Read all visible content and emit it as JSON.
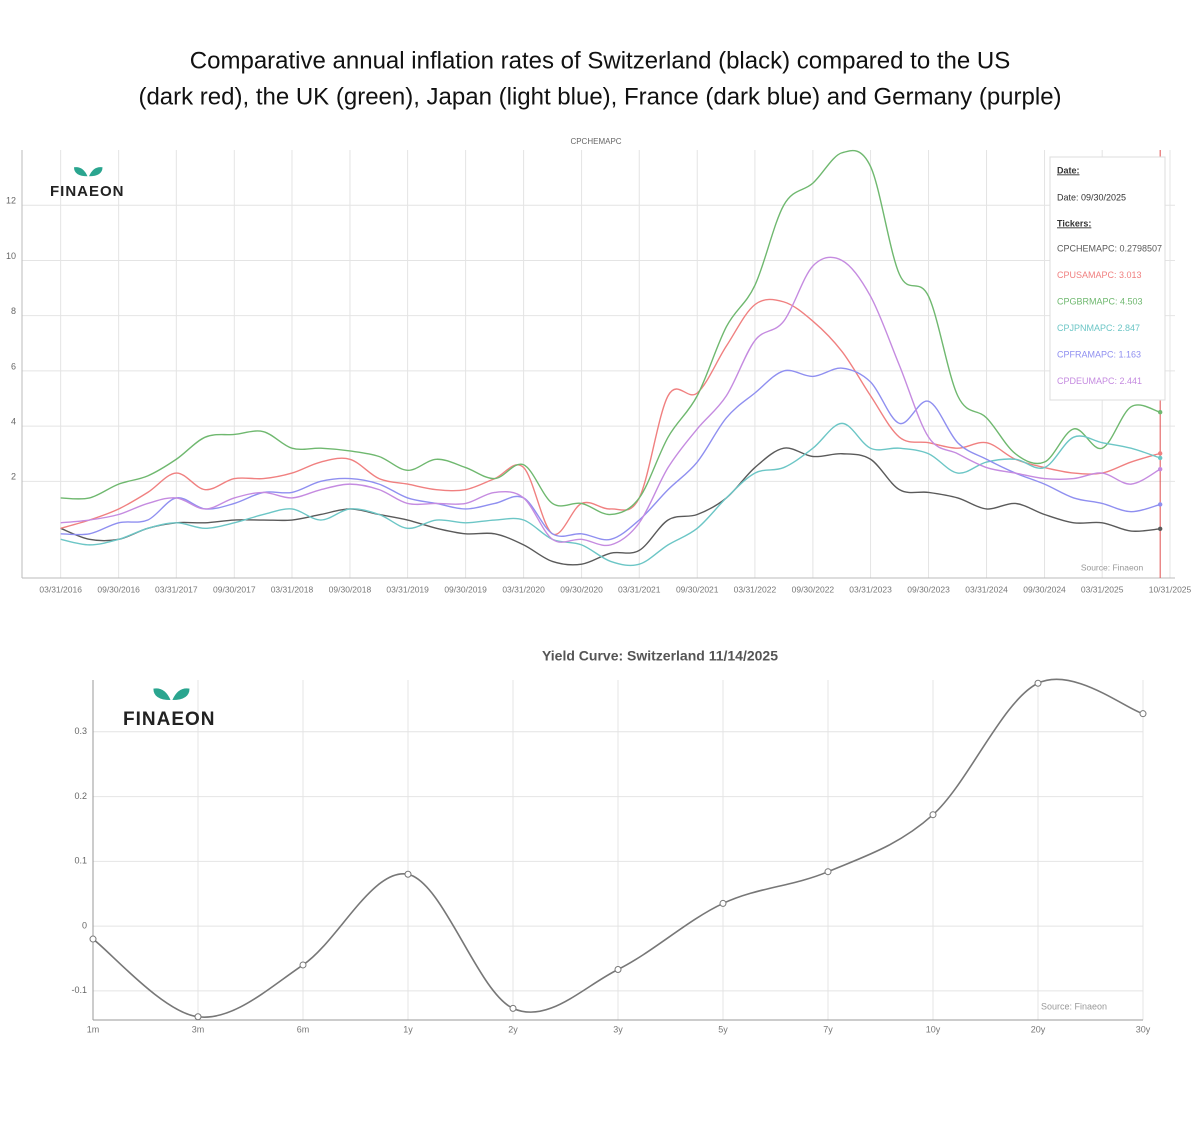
{
  "heading": [
    "Comparative annual inflation rates of Switzerland (black) compared to the US",
    "(dark red), the UK (green), Japan (light blue), France (dark blue) and Germany (purple)"
  ],
  "chart_data": [
    {
      "type": "line",
      "title": "CPCHEMAPC",
      "logo_text": "FINAEON",
      "source": "Source: Finaeon",
      "x": [
        "03/31/2016",
        "06/30/2016",
        "09/30/2016",
        "12/31/2016",
        "03/31/2017",
        "06/30/2017",
        "09/30/2017",
        "12/31/2017",
        "03/31/2018",
        "06/30/2018",
        "09/30/2018",
        "12/31/2018",
        "03/31/2019",
        "06/30/2019",
        "09/30/2019",
        "12/31/2019",
        "03/31/2020",
        "06/30/2020",
        "09/30/2020",
        "12/31/2020",
        "03/31/2021",
        "06/30/2021",
        "09/30/2021",
        "12/31/2021",
        "03/31/2022",
        "06/30/2022",
        "09/30/2022",
        "12/31/2022",
        "03/31/2023",
        "06/30/2023",
        "09/30/2023",
        "12/31/2023",
        "03/31/2024",
        "06/30/2024",
        "09/30/2024",
        "12/31/2024",
        "03/31/2025",
        "06/30/2025",
        "09/30/2025"
      ],
      "series": [
        {
          "name": "CPCHEMAPC",
          "color": "#5a5a5a",
          "values": [
            0.3,
            -0.1,
            -0.1,
            0.3,
            0.5,
            0.5,
            0.6,
            0.6,
            0.6,
            0.8,
            1.0,
            0.8,
            0.6,
            0.3,
            0.1,
            0.1,
            -0.3,
            -0.9,
            -1.0,
            -0.6,
            -0.5,
            0.6,
            0.8,
            1.4,
            2.5,
            3.2,
            2.9,
            3.0,
            2.8,
            1.7,
            1.6,
            1.4,
            1.0,
            1.2,
            0.8,
            0.5,
            0.5,
            0.2,
            0.2798507
          ]
        },
        {
          "name": "CPUSAMAPC",
          "color": "#f08080",
          "values": [
            0.3,
            0.6,
            1.0,
            1.6,
            2.3,
            1.7,
            2.1,
            2.1,
            2.3,
            2.7,
            2.8,
            2.1,
            1.9,
            1.7,
            1.7,
            2.1,
            2.5,
            0.1,
            1.2,
            1.0,
            1.4,
            5.1,
            5.2,
            6.9,
            8.4,
            8.5,
            7.8,
            6.7,
            5.1,
            3.6,
            3.4,
            3.2,
            3.4,
            2.8,
            2.5,
            2.3,
            2.3,
            2.7,
            3.013
          ]
        },
        {
          "name": "CPGBRMAPC",
          "color": "#6fb86f",
          "values": [
            1.4,
            1.4,
            1.9,
            2.2,
            2.8,
            3.6,
            3.7,
            3.8,
            3.2,
            3.2,
            3.1,
            2.9,
            2.4,
            2.8,
            2.5,
            2.1,
            2.6,
            1.2,
            1.2,
            0.8,
            1.4,
            3.6,
            5.1,
            7.6,
            9.1,
            12.0,
            12.8,
            13.9,
            13.4,
            9.5,
            8.7,
            5.1,
            4.3,
            3.0,
            2.7,
            3.9,
            3.2,
            4.7,
            4.503
          ]
        },
        {
          "name": "CPJPNMAPC",
          "color": "#6cc6c6",
          "values": [
            -0.1,
            -0.3,
            -0.1,
            0.3,
            0.5,
            0.3,
            0.5,
            0.8,
            1.0,
            0.6,
            1.0,
            0.8,
            0.3,
            0.6,
            0.5,
            0.6,
            0.6,
            -0.1,
            -0.3,
            -0.9,
            -1.0,
            -0.3,
            0.3,
            1.4,
            2.3,
            2.5,
            3.2,
            4.1,
            3.2,
            3.2,
            3.0,
            2.3,
            2.7,
            2.8,
            2.5,
            3.6,
            3.4,
            3.2,
            2.847
          ]
        },
        {
          "name": "CPFRAMAPC",
          "color": "#8f8ff0",
          "values": [
            0.1,
            0.1,
            0.5,
            0.6,
            1.4,
            1.0,
            1.2,
            1.6,
            1.6,
            2.0,
            2.1,
            1.9,
            1.4,
            1.2,
            1.0,
            1.2,
            1.4,
            0.1,
            0.1,
            -0.1,
            0.6,
            1.7,
            2.7,
            4.3,
            5.2,
            6.0,
            5.8,
            6.1,
            5.6,
            4.1,
            4.9,
            3.4,
            2.8,
            2.3,
            1.9,
            1.4,
            1.2,
            0.9,
            1.163
          ]
        },
        {
          "name": "CPDEUMAPC",
          "color": "#c58be0",
          "values": [
            0.5,
            0.6,
            0.8,
            1.2,
            1.4,
            1.0,
            1.4,
            1.6,
            1.4,
            1.7,
            1.9,
            1.7,
            1.2,
            1.2,
            1.2,
            1.6,
            1.4,
            -0.1,
            -0.1,
            -0.3,
            0.5,
            2.5,
            3.9,
            5.1,
            7.1,
            7.8,
            9.8,
            10.0,
            8.7,
            6.2,
            3.6,
            3.0,
            2.5,
            2.3,
            2.1,
            2.1,
            2.3,
            1.9,
            2.441
          ]
        }
      ],
      "xlim": [
        "11/30/2015",
        "10/31/2025"
      ],
      "xticks": [
        "03/31/2016",
        "09/30/2016",
        "03/31/2017",
        "09/30/2017",
        "03/31/2018",
        "09/30/2018",
        "03/31/2019",
        "09/30/2019",
        "03/31/2020",
        "09/30/2020",
        "03/31/2021",
        "09/30/2021",
        "03/31/2022",
        "09/30/2022",
        "03/31/2023",
        "09/30/2023",
        "03/31/2024",
        "09/30/2024",
        "03/31/2025",
        "10/31/2025"
      ],
      "ylim": [
        -1.5,
        14
      ],
      "yticks": [
        2,
        4,
        6,
        8,
        10,
        12
      ],
      "grid": true,
      "tooltip": {
        "heading": "Date:",
        "date": "Date: 09/30/2025",
        "tickers_heading": "Tickers:",
        "lines": [
          "CPCHEMAPC: 0.2798507",
          "CPUSAMAPC: 3.013",
          "CPGBRMAPC: 4.503",
          "CPJPNMAPC: 2.847",
          "CPFRAMAPC: 1.163",
          "CPDEUMAPC: 2.441"
        ]
      }
    },
    {
      "type": "line",
      "title": "Yield Curve: Switzerland 11/14/2025",
      "logo_text": "FINAEON",
      "source": "Source: Finaeon",
      "categories": [
        "1m",
        "3m",
        "6m",
        "1y",
        "2y",
        "3y",
        "5y",
        "7y",
        "10y",
        "20y",
        "30y"
      ],
      "values": [
        -0.02,
        -0.14,
        -0.06,
        0.08,
        -0.127,
        -0.067,
        0.035,
        0.084,
        0.172,
        0.375,
        0.328
      ],
      "color": "#777777",
      "ylim": [
        -0.145,
        0.38
      ],
      "yticks": [
        -0.1,
        0,
        0.1,
        0.2,
        0.3
      ],
      "grid": true
    }
  ]
}
